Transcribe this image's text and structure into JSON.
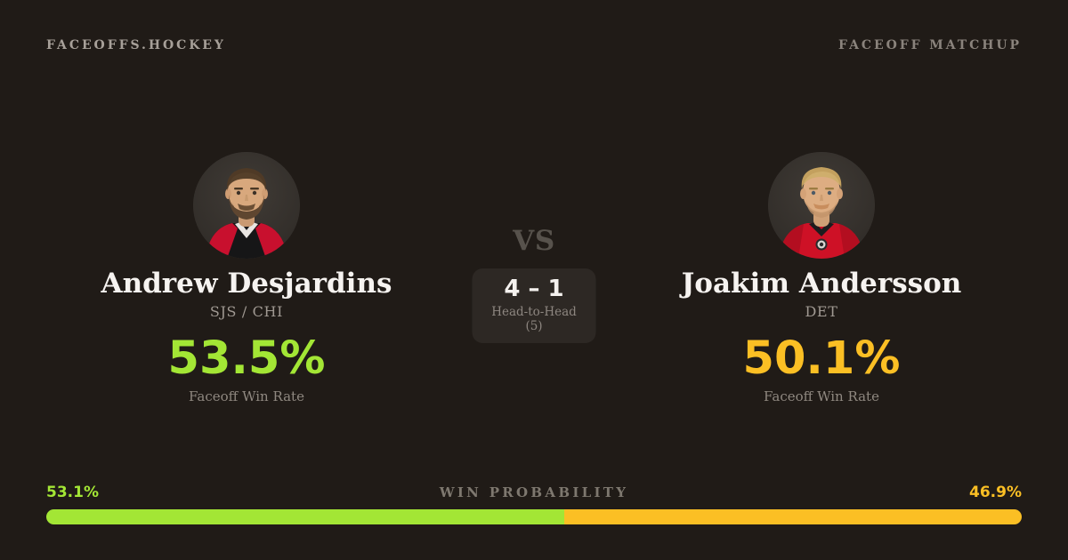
{
  "theme": {
    "background": "#201b17",
    "panel": "#2d2824",
    "text_primary": "#f6f3f0",
    "text_muted": "#8f8880",
    "green": "#a3e635",
    "amber": "#fbbf24"
  },
  "header": {
    "brand": "FACEOFFS.HOCKEY",
    "label": "FACEOFF MATCHUP"
  },
  "players": {
    "left": {
      "name": "Andrew Desjardins",
      "team": "SJS / CHI",
      "faceoff_win_rate": "53.5%",
      "rate_label": "Faceoff Win Rate",
      "accent": "#a3e635"
    },
    "right": {
      "name": "Joakim Andersson",
      "team": "DET",
      "faceoff_win_rate": "50.1%",
      "rate_label": "Faceoff Win Rate",
      "accent": "#fbbf24"
    }
  },
  "center": {
    "vs": "VS",
    "head_to_head_score": "4 – 1",
    "head_to_head_label": "Head-to-Head (5)"
  },
  "win_probability": {
    "label": "WIN PROBABILITY",
    "left_value": "53.1%",
    "right_value": "46.9%",
    "left_percent": 53.1,
    "right_percent": 46.9,
    "left_color": "#a3e635",
    "right_color": "#fbbf24"
  }
}
